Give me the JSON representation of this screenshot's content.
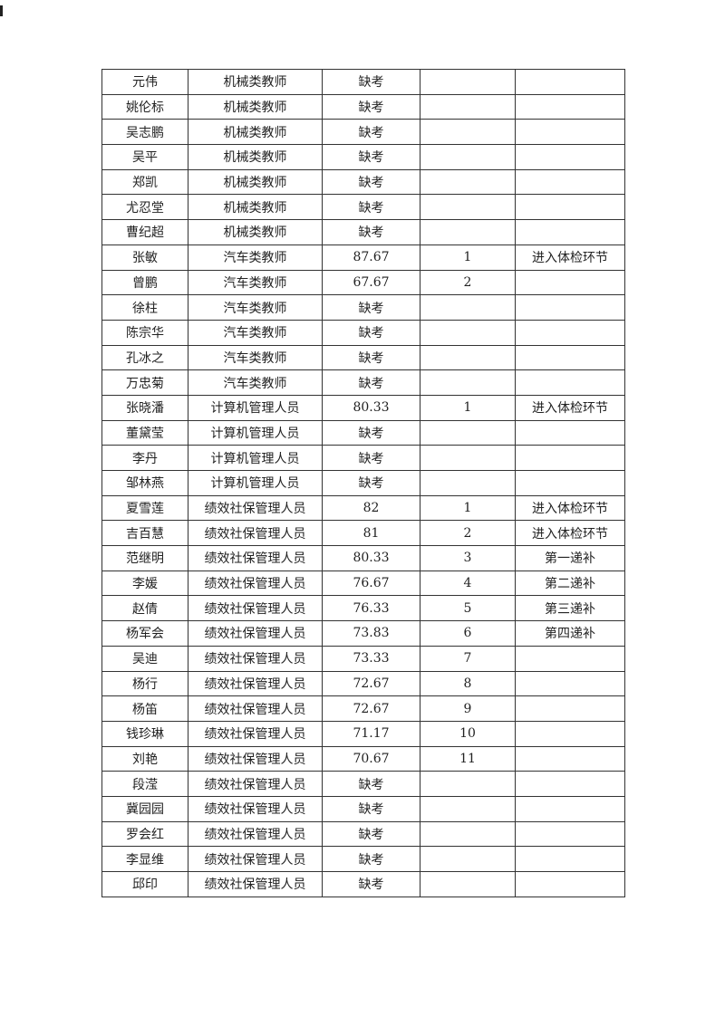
{
  "rows": [
    [
      "元伟",
      "机械类教师",
      "缺考",
      "",
      ""
    ],
    [
      "姚伦标",
      "机械类教师",
      "缺考",
      "",
      ""
    ],
    [
      "吴志鹏",
      "机械类教师",
      "缺考",
      "",
      ""
    ],
    [
      "吴平",
      "机械类教师",
      "缺考",
      "",
      ""
    ],
    [
      "郑凯",
      "机械类教师",
      "缺考",
      "",
      ""
    ],
    [
      "尤忍堂",
      "机械类教师",
      "缺考",
      "",
      ""
    ],
    [
      "曹纪超",
      "机械类教师",
      "缺考",
      "",
      ""
    ],
    [
      "张敏",
      "汽车类教师",
      "87.67",
      "1",
      "进入体检环节"
    ],
    [
      "曾鹏",
      "汽车类教师",
      "67.67",
      "2",
      ""
    ],
    [
      "徐柱",
      "汽车类教师",
      "缺考",
      "",
      ""
    ],
    [
      "陈宗华",
      "汽车类教师",
      "缺考",
      "",
      ""
    ],
    [
      "孔冰之",
      "汽车类教师",
      "缺考",
      "",
      ""
    ],
    [
      "万忠菊",
      "汽车类教师",
      "缺考",
      "",
      ""
    ],
    [
      "张晓潘",
      "计算机管理人员",
      "80.33",
      "1",
      "进入体检环节"
    ],
    [
      "董黛莹",
      "计算机管理人员",
      "缺考",
      "",
      ""
    ],
    [
      "李丹",
      "计算机管理人员",
      "缺考",
      "",
      ""
    ],
    [
      "邹林燕",
      "计算机管理人员",
      "缺考",
      "",
      ""
    ],
    [
      "夏雪莲",
      "绩效社保管理人员",
      "82",
      "1",
      "进入体检环节"
    ],
    [
      "吉百慧",
      "绩效社保管理人员",
      "81",
      "2",
      "进入体检环节"
    ],
    [
      "范继明",
      "绩效社保管理人员",
      "80.33",
      "3",
      "第一递补"
    ],
    [
      "李媛",
      "绩效社保管理人员",
      "76.67",
      "4",
      "第二递补"
    ],
    [
      "赵倩",
      "绩效社保管理人员",
      "76.33",
      "5",
      "第三递补"
    ],
    [
      "杨军会",
      "绩效社保管理人员",
      "73.83",
      "6",
      "第四递补"
    ],
    [
      "吴迪",
      "绩效社保管理人员",
      "73.33",
      "7",
      ""
    ],
    [
      "杨行",
      "绩效社保管理人员",
      "72.67",
      "8",
      ""
    ],
    [
      "杨笛",
      "绩效社保管理人员",
      "72.67",
      "9",
      ""
    ],
    [
      "钱珍琳",
      "绩效社保管理人员",
      "71.17",
      "10",
      ""
    ],
    [
      "刘艳",
      "绩效社保管理人员",
      "70.67",
      "11",
      ""
    ],
    [
      "段滢",
      "绩效社保管理人员",
      "缺考",
      "",
      ""
    ],
    [
      "冀园园",
      "绩效社保管理人员",
      "缺考",
      "",
      ""
    ],
    [
      "罗会红",
      "绩效社保管理人员",
      "缺考",
      "",
      ""
    ],
    [
      "李显维",
      "绩效社保管理人员",
      "缺考",
      "",
      ""
    ],
    [
      "邱印",
      "绩效社保管理人员",
      "缺考",
      "",
      ""
    ]
  ]
}
